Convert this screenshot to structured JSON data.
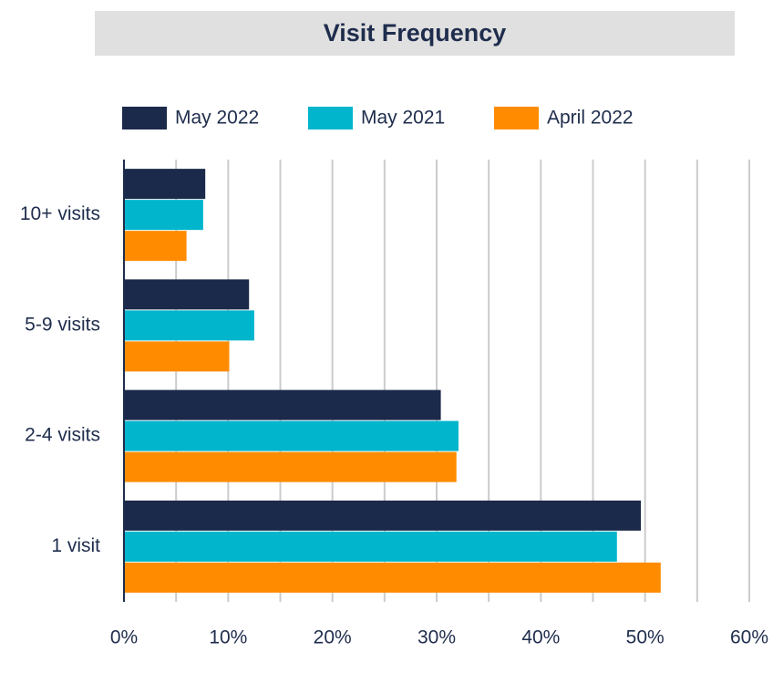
{
  "chart_data": {
    "type": "barh",
    "title": "Visit Frequency",
    "categories": [
      "10+ visits",
      "5-9 visits",
      "2-4 visits",
      "1 visit"
    ],
    "series": [
      {
        "name": "May 2022",
        "color": "#1b2a4a",
        "values": [
          7.8,
          12.0,
          30.4,
          49.6
        ]
      },
      {
        "name": "May 2021",
        "color": "#00b5cc",
        "values": [
          7.6,
          12.5,
          32.1,
          47.3
        ]
      },
      {
        "name": "April 2022",
        "color": "#ff8c00",
        "values": [
          6.0,
          10.1,
          31.9,
          51.5
        ]
      }
    ],
    "xlim": [
      0,
      60
    ],
    "xticks": [
      {
        "value": 0,
        "label": "0%"
      },
      {
        "value": 10,
        "label": "10%"
      },
      {
        "value": 20,
        "label": "20%"
      },
      {
        "value": 30,
        "label": "30%"
      },
      {
        "value": 40,
        "label": "40%"
      },
      {
        "value": 50,
        "label": "50%"
      },
      {
        "value": 60,
        "label": "60%"
      }
    ],
    "minor_xticks": [
      5,
      15,
      25,
      35,
      45,
      55
    ],
    "grid": true,
    "legend": "top"
  }
}
